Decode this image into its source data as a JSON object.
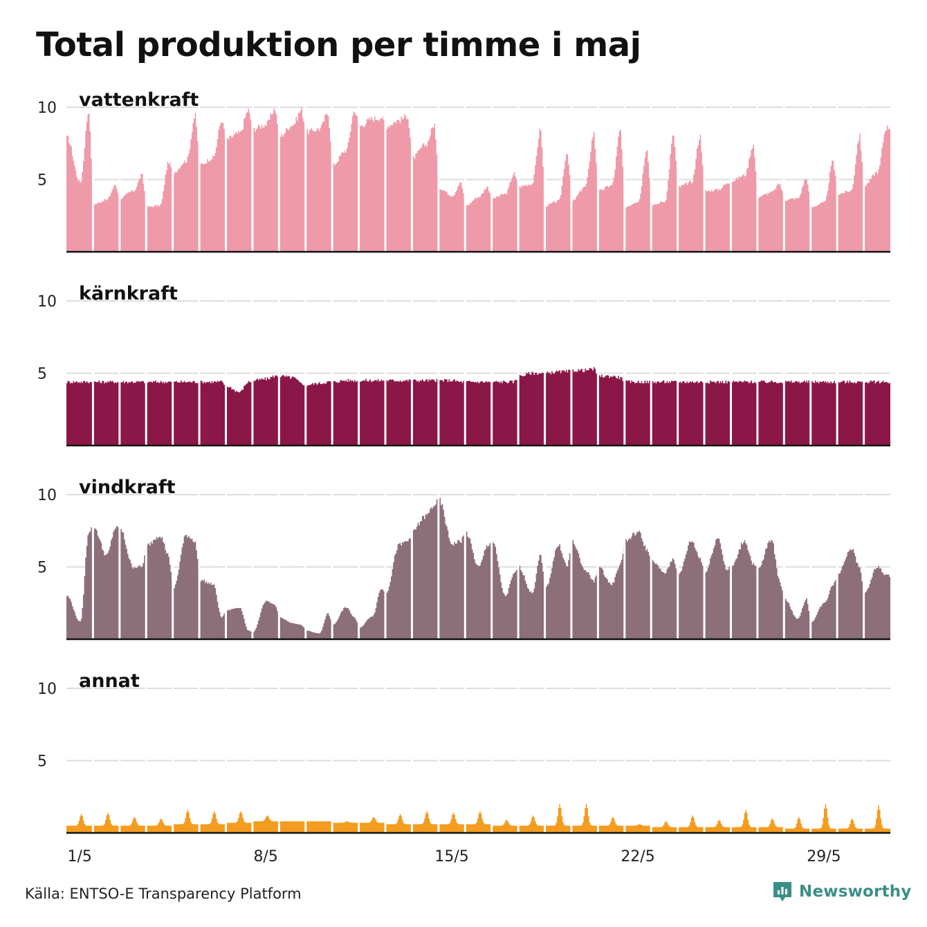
{
  "title": "Total produktion per timme i maj",
  "source": "Källa: ENTSO-E Transparency Platform",
  "brand": {
    "name": "Newsworthy",
    "color": "#3a8f86",
    "icon": "bar-chart-speech-icon"
  },
  "chart_data": {
    "type": "area",
    "layout": "small-multiples",
    "resolution": "hourly",
    "x": {
      "start": "1/5",
      "days": 31,
      "ticks": [
        "1/5",
        "8/5",
        "15/5",
        "22/5",
        "29/5"
      ],
      "day_separators": true
    },
    "y": {
      "ticks": [
        5,
        10
      ],
      "ylim": [
        0,
        10
      ],
      "grid": true
    },
    "series": [
      {
        "name": "vattenkraft",
        "color": "#ef9aa9",
        "daily_profile": [
          [
            7.9,
            4.8,
            9.8
          ],
          [
            3.3,
            3.6,
            4.6
          ],
          [
            3.7,
            4.2,
            5.3
          ],
          [
            3.1,
            3.2,
            6.2
          ],
          [
            5.5,
            6.3,
            9.4
          ],
          [
            6.0,
            6.5,
            9.1
          ],
          [
            7.8,
            8.2,
            9.8
          ],
          [
            8.5,
            8.8,
            9.9
          ],
          [
            8.0,
            8.8,
            9.8
          ],
          [
            8.3,
            8.5,
            9.6
          ],
          [
            6.0,
            7.0,
            9.8
          ],
          [
            8.7,
            9.2,
            9.3
          ],
          [
            8.7,
            9.1,
            9.4
          ],
          [
            6.5,
            7.4,
            8.8
          ],
          [
            4.4,
            3.9,
            4.8
          ],
          [
            3.2,
            3.8,
            4.5
          ],
          [
            3.7,
            4.0,
            5.4
          ],
          [
            4.5,
            4.7,
            8.5
          ],
          [
            3.2,
            3.5,
            6.9
          ],
          [
            3.5,
            4.5,
            8.2
          ],
          [
            4.2,
            4.6,
            8.4
          ],
          [
            3.1,
            3.5,
            7.2
          ],
          [
            3.2,
            3.5,
            8.1
          ],
          [
            4.5,
            4.8,
            8.0
          ],
          [
            4.2,
            4.3,
            4.7
          ],
          [
            4.9,
            5.3,
            7.4
          ],
          [
            3.8,
            4.1,
            4.7
          ],
          [
            3.6,
            3.7,
            5.1
          ],
          [
            3.1,
            3.4,
            6.3
          ],
          [
            4.0,
            4.2,
            8.0
          ],
          [
            4.6,
            5.5,
            8.6
          ]
        ]
      },
      {
        "name": "kärnkraft",
        "color": "#8b1748",
        "daily_profile": [
          [
            4.4,
            4.4,
            4.4
          ],
          [
            4.4,
            4.4,
            4.4
          ],
          [
            4.4,
            4.4,
            4.4
          ],
          [
            4.4,
            4.4,
            4.4
          ],
          [
            4.4,
            4.4,
            4.4
          ],
          [
            4.4,
            4.4,
            4.4
          ],
          [
            4.1,
            3.7,
            4.4
          ],
          [
            4.5,
            4.6,
            4.8
          ],
          [
            4.8,
            4.7,
            4.3
          ],
          [
            4.2,
            4.3,
            4.4
          ],
          [
            4.4,
            4.5,
            4.5
          ],
          [
            4.5,
            4.5,
            4.5
          ],
          [
            4.5,
            4.5,
            4.5
          ],
          [
            4.5,
            4.5,
            4.5
          ],
          [
            4.5,
            4.5,
            4.4
          ],
          [
            4.4,
            4.4,
            4.4
          ],
          [
            4.4,
            4.4,
            4.4
          ],
          [
            4.8,
            5.0,
            5.0
          ],
          [
            5.0,
            5.1,
            5.1
          ],
          [
            5.2,
            5.2,
            5.3
          ],
          [
            4.8,
            4.8,
            4.7
          ],
          [
            4.4,
            4.4,
            4.4
          ],
          [
            4.4,
            4.4,
            4.4
          ],
          [
            4.4,
            4.4,
            4.4
          ],
          [
            4.4,
            4.4,
            4.4
          ],
          [
            4.4,
            4.4,
            4.4
          ],
          [
            4.4,
            4.4,
            4.4
          ],
          [
            4.4,
            4.4,
            4.4
          ],
          [
            4.4,
            4.4,
            4.4
          ],
          [
            4.4,
            4.4,
            4.4
          ],
          [
            4.4,
            4.4,
            4.4
          ]
        ]
      },
      {
        "name": "vindkraft",
        "color": "#8c6f78",
        "daily_profile": [
          [
            3.0,
            1.2,
            7.5
          ],
          [
            7.8,
            5.8,
            7.7
          ],
          [
            7.6,
            5.0,
            5.0
          ],
          [
            6.5,
            7.2,
            5.8
          ],
          [
            3.5,
            7.2,
            6.8
          ],
          [
            4.1,
            3.8,
            1.5
          ],
          [
            2.0,
            2.2,
            0.6
          ],
          [
            0.5,
            2.6,
            2.4
          ],
          [
            1.5,
            1.1,
            1.0
          ],
          [
            0.6,
            0.4,
            1.8
          ],
          [
            1.0,
            2.2,
            1.5
          ],
          [
            0.8,
            1.6,
            3.5
          ],
          [
            3.2,
            6.5,
            6.8
          ],
          [
            7.5,
            8.5,
            9.3
          ],
          [
            9.6,
            6.6,
            6.8
          ],
          [
            7.4,
            5.0,
            6.5
          ],
          [
            6.8,
            3.0,
            4.5
          ],
          [
            5.0,
            3.2,
            5.8
          ],
          [
            3.5,
            6.5,
            5.0
          ],
          [
            6.8,
            4.8,
            4.0
          ],
          [
            5.0,
            3.8,
            5.2
          ],
          [
            6.8,
            7.4,
            6.2
          ],
          [
            5.4,
            4.6,
            5.6
          ],
          [
            4.4,
            6.8,
            5.6
          ],
          [
            4.6,
            7.0,
            4.8
          ],
          [
            5.0,
            6.8,
            5.2
          ],
          [
            4.8,
            6.9,
            4.0
          ],
          [
            2.8,
            1.4,
            2.8
          ],
          [
            1.2,
            2.5,
            3.8
          ],
          [
            4.5,
            6.3,
            5.0
          ],
          [
            3.2,
            5.0,
            4.4
          ]
        ]
      },
      {
        "name": "annat",
        "color": "#f39c1f",
        "daily_profile": [
          [
            0.5,
            1.3,
            0.5
          ],
          [
            0.5,
            1.4,
            0.5
          ],
          [
            0.5,
            1.1,
            0.5
          ],
          [
            0.5,
            1.0,
            0.5
          ],
          [
            0.6,
            1.6,
            0.6
          ],
          [
            0.6,
            1.5,
            0.6
          ],
          [
            0.7,
            1.5,
            0.6
          ],
          [
            0.8,
            1.2,
            0.7
          ],
          [
            0.8,
            0.8,
            0.8
          ],
          [
            0.8,
            0.8,
            0.8
          ],
          [
            0.7,
            0.8,
            0.7
          ],
          [
            0.7,
            1.1,
            0.7
          ],
          [
            0.6,
            1.3,
            0.6
          ],
          [
            0.6,
            1.5,
            0.6
          ],
          [
            0.6,
            1.4,
            0.6
          ],
          [
            0.6,
            1.5,
            0.6
          ],
          [
            0.5,
            0.9,
            0.5
          ],
          [
            0.5,
            1.2,
            0.5
          ],
          [
            0.5,
            2.0,
            0.5
          ],
          [
            0.5,
            2.0,
            0.5
          ],
          [
            0.5,
            1.1,
            0.5
          ],
          [
            0.5,
            0.6,
            0.5
          ],
          [
            0.4,
            0.8,
            0.4
          ],
          [
            0.4,
            1.2,
            0.4
          ],
          [
            0.4,
            0.9,
            0.4
          ],
          [
            0.4,
            1.6,
            0.4
          ],
          [
            0.4,
            1.0,
            0.4
          ],
          [
            0.3,
            1.1,
            0.3
          ],
          [
            0.3,
            2.0,
            0.3
          ],
          [
            0.3,
            1.0,
            0.3
          ],
          [
            0.3,
            1.9,
            0.3
          ]
        ]
      }
    ]
  }
}
